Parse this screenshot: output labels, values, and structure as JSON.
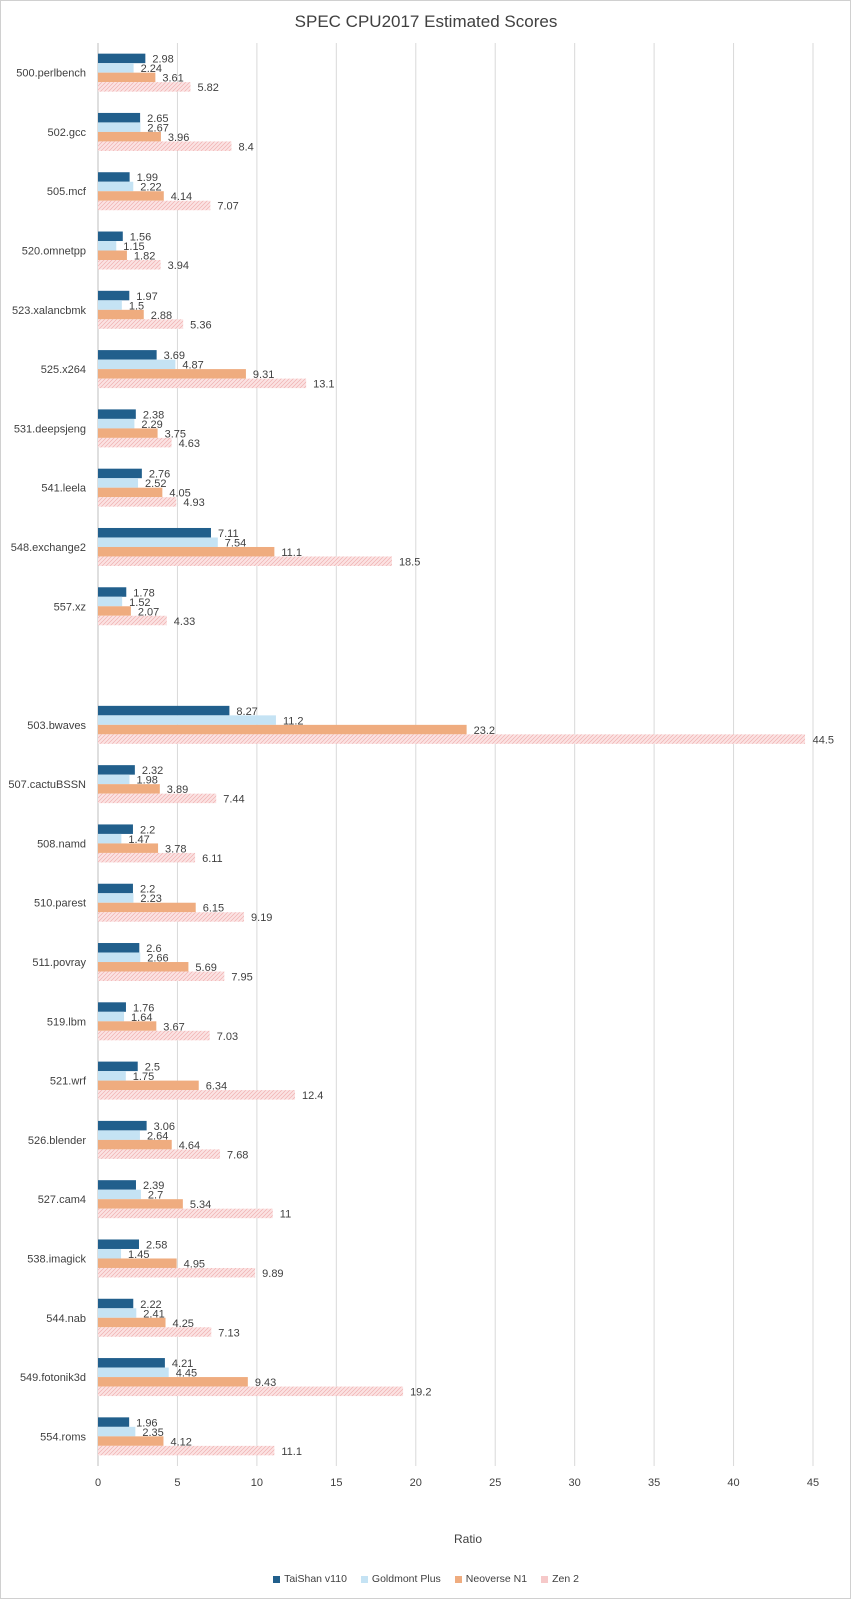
{
  "chart_data": {
    "type": "bar",
    "orientation": "horizontal",
    "title": "SPEC CPU2017 Estimated Scores",
    "xlabel": "Ratio",
    "xlim": [
      0,
      45
    ],
    "xticks": [
      0,
      5,
      10,
      15,
      20,
      25,
      30,
      35,
      40,
      45
    ],
    "grid": true,
    "legend_position": "bottom",
    "groups": [
      {
        "categories": [
          "500.perlbench",
          "502.gcc",
          "505.mcf",
          "520.omnetpp",
          "523.xalancbmk",
          "525.x264",
          "531.deepsjeng",
          "541.leela",
          "548.exchange2",
          "557.xz"
        ],
        "series": [
          {
            "name": "TaiShan v110",
            "values": [
              2.98,
              2.65,
              1.99,
              1.56,
              1.97,
              3.69,
              2.38,
              2.76,
              7.11,
              1.78
            ]
          },
          {
            "name": "Goldmont Plus",
            "values": [
              2.24,
              2.67,
              2.22,
              1.15,
              1.5,
              4.87,
              2.29,
              2.52,
              7.54,
              1.52
            ]
          },
          {
            "name": "Neoverse N1",
            "values": [
              3.61,
              3.96,
              4.14,
              1.82,
              2.88,
              9.31,
              3.75,
              4.05,
              11.1,
              2.07
            ]
          },
          {
            "name": "Zen 2",
            "values": [
              5.82,
              8.4,
              7.07,
              3.94,
              5.36,
              13.1,
              4.63,
              4.93,
              18.5,
              4.33
            ]
          }
        ]
      },
      {
        "categories": [
          "503.bwaves",
          "507.cactuBSSN",
          "508.namd",
          "510.parest",
          "511.povray",
          "519.lbm",
          "521.wrf",
          "526.blender",
          "527.cam4",
          "538.imagick",
          "544.nab",
          "549.fotonik3d",
          "554.roms"
        ],
        "series": [
          {
            "name": "TaiShan v110",
            "values": [
              8.27,
              2.32,
              2.2,
              2.2,
              2.6,
              1.76,
              2.5,
              3.06,
              2.39,
              2.58,
              2.22,
              4.21,
              1.96
            ]
          },
          {
            "name": "Goldmont Plus",
            "values": [
              11.2,
              1.98,
              1.47,
              2.23,
              2.66,
              1.64,
              1.75,
              2.64,
              2.7,
              1.45,
              2.41,
              4.45,
              2.35
            ]
          },
          {
            "name": "Neoverse N1",
            "values": [
              23.2,
              3.89,
              3.78,
              6.15,
              5.69,
              3.67,
              6.34,
              4.64,
              5.34,
              4.95,
              4.25,
              9.43,
              4.12
            ]
          },
          {
            "name": "Zen 2",
            "values": [
              44.5,
              7.44,
              6.11,
              9.19,
              7.95,
              7.03,
              12.4,
              7.68,
              11,
              9.89,
              7.13,
              19.2,
              11.1
            ]
          }
        ]
      }
    ],
    "series_colors": {
      "TaiShan v110": "#215f8c",
      "Goldmont Plus": "#c5e3f4",
      "Neoverse N1": "#efac7f",
      "Zen 2": "#fbe3e3"
    },
    "zen2_pattern_color": "#f3b3b3"
  },
  "legend": {
    "items": [
      "TaiShan v110",
      "Goldmont Plus",
      "Neoverse N1",
      "Zen 2"
    ]
  }
}
